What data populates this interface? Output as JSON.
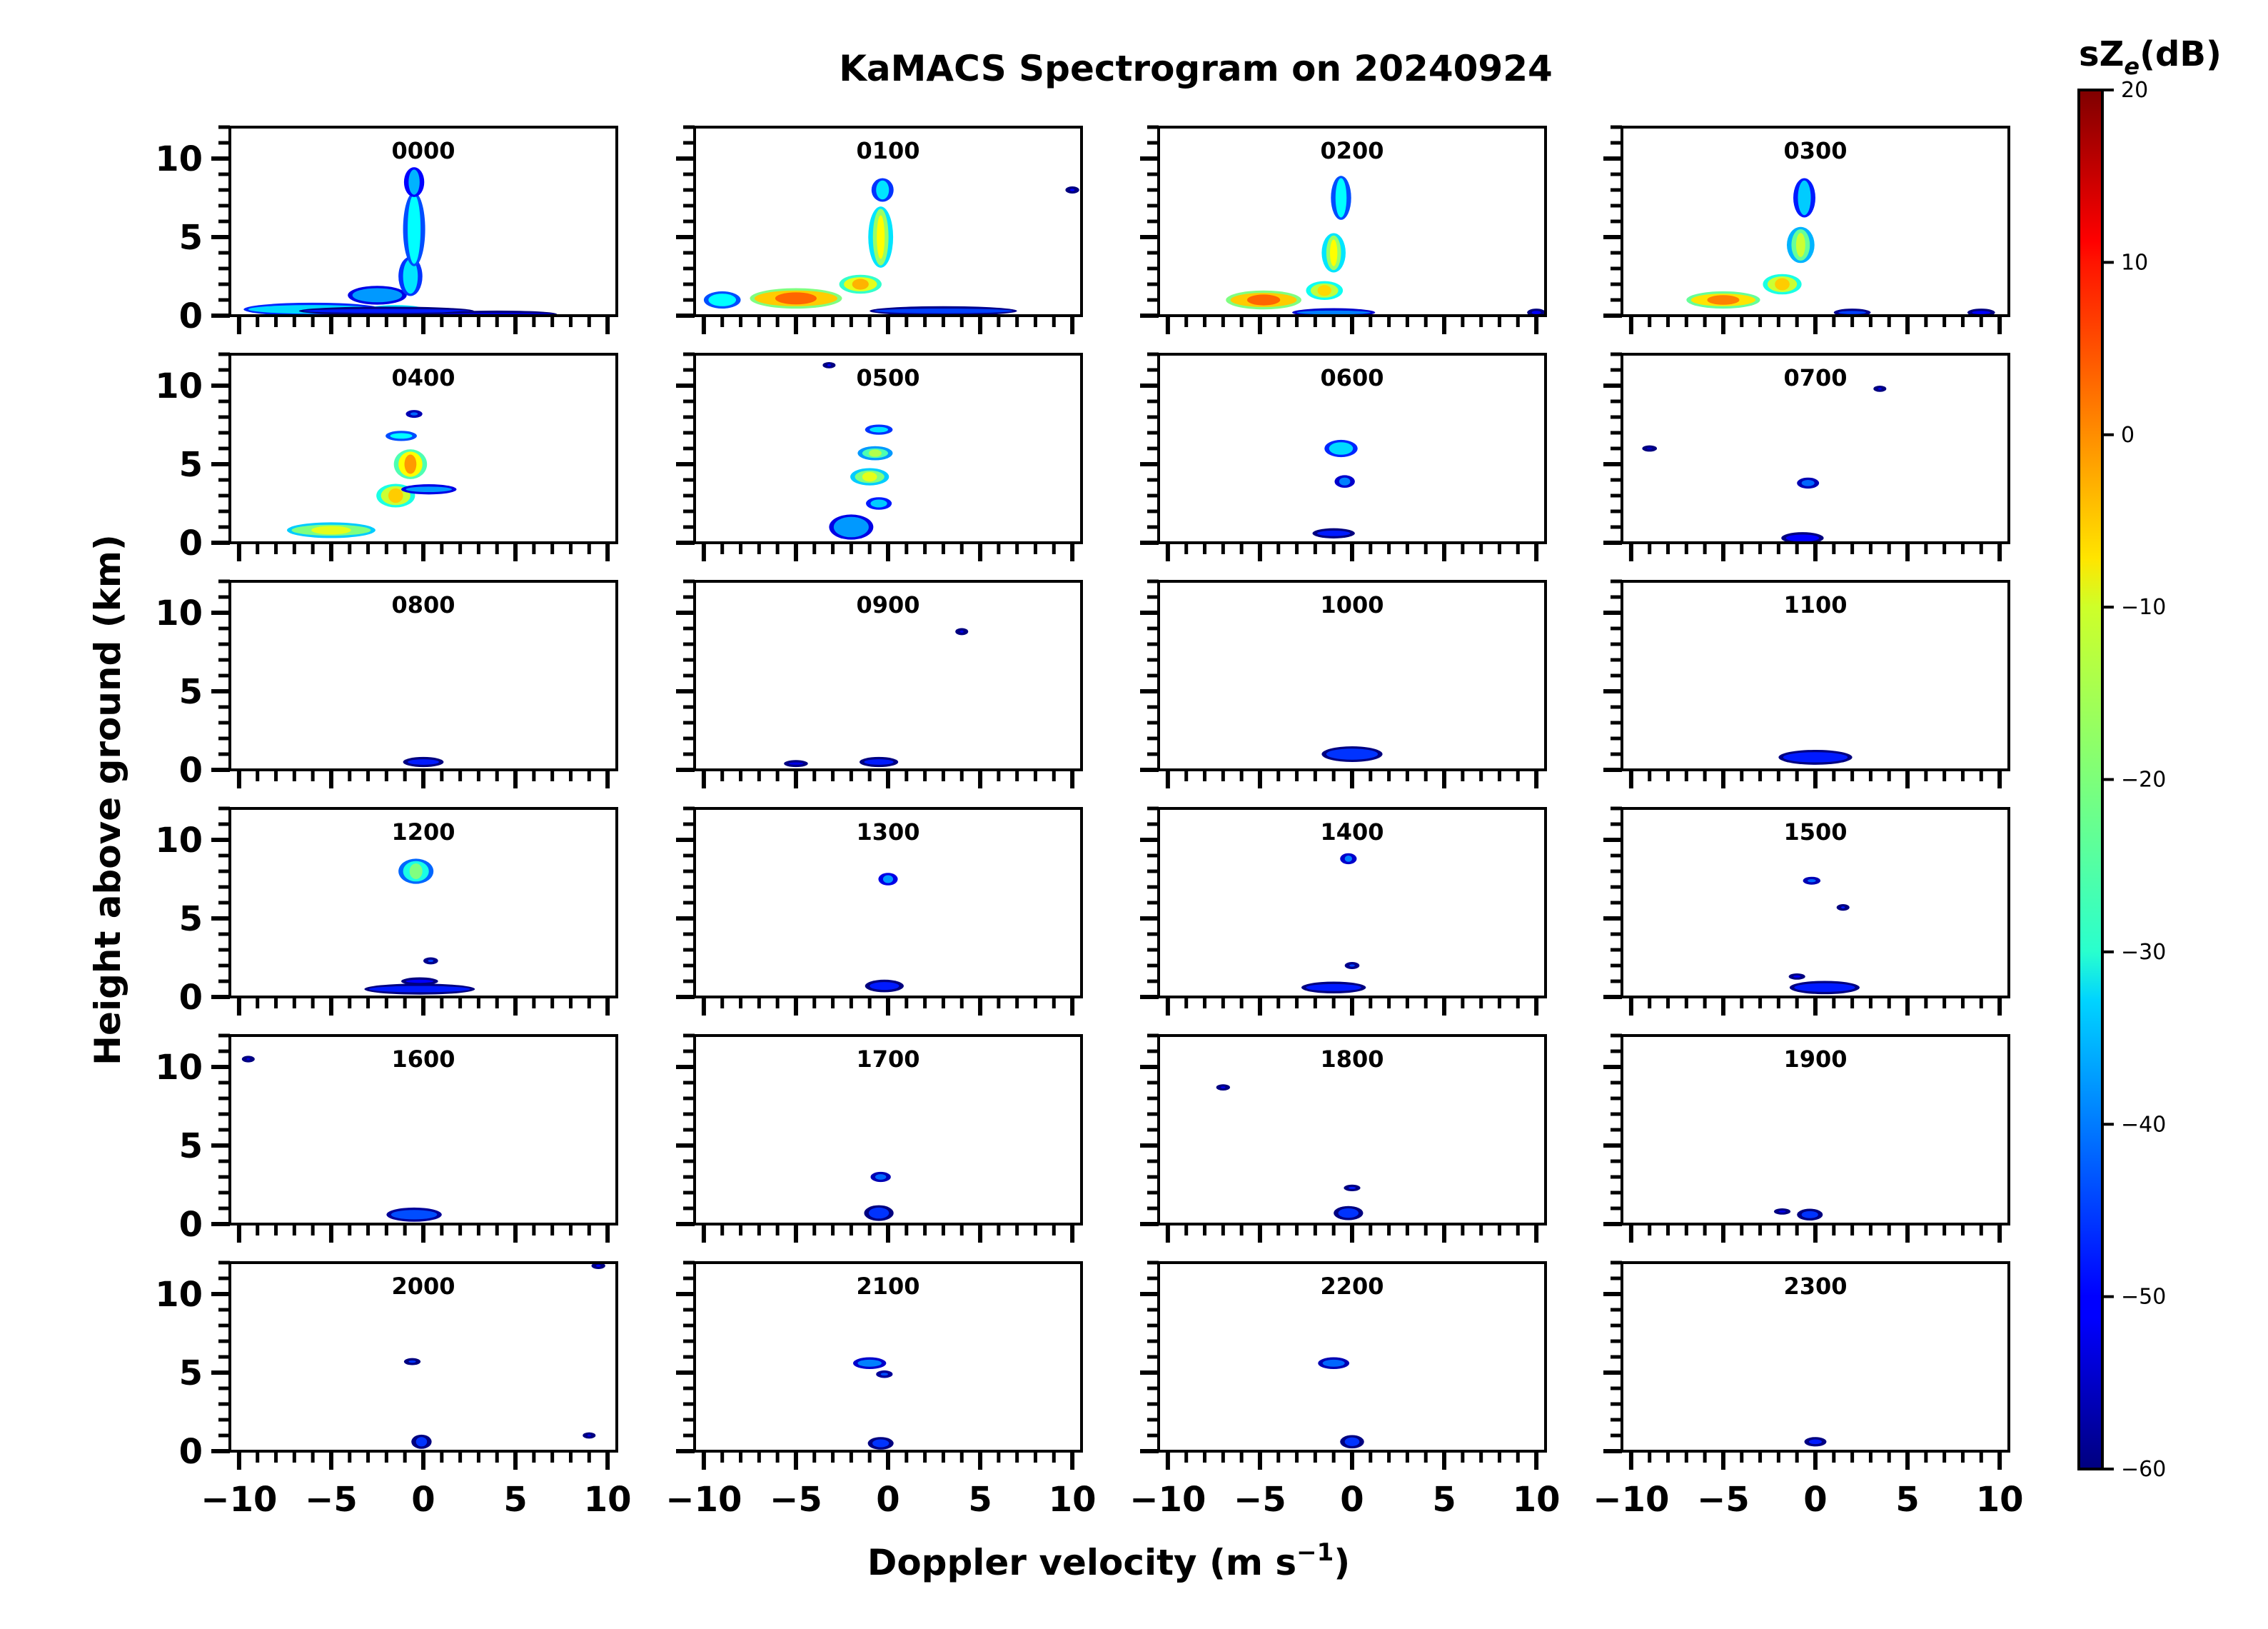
{
  "chart_data": {
    "type": "heatmap",
    "title": "KaMACS Spectrogram on 20240924",
    "xlabel_main": "Doppler velocity (m s",
    "xlabel_sup": "−1",
    "xlabel_close": ")",
    "ylabel": "Height above ground (km)",
    "xlim": [
      -10.5,
      10.5
    ],
    "ylim": [
      0,
      12
    ],
    "xticks": [
      -10,
      -5,
      0,
      5,
      10
    ],
    "xtick_labels": [
      "−10",
      "−5",
      "0",
      "5",
      "10"
    ],
    "yticks": [
      0,
      5,
      10
    ],
    "ytick_labels": [
      "0",
      "5",
      "10"
    ],
    "colorbar": {
      "label_main": "sZ",
      "label_sub": "e",
      "label_tail": "(dB)",
      "range": [
        -60,
        20
      ],
      "ticks": [
        20,
        10,
        0,
        -10,
        -20,
        -30,
        -40,
        -50,
        -60
      ],
      "tick_labels": [
        "20",
        "10",
        "0",
        "−10",
        "−20",
        "−30",
        "−40",
        "−50",
        "−60"
      ],
      "colormap": "jet"
    },
    "panels": [
      {
        "label": "0000",
        "blobs": [
          [
            -6,
            0.4,
            7,
            0.55,
            -33
          ],
          [
            -2.5,
            1.3,
            2.7,
            0.9,
            -38
          ],
          [
            -0.7,
            2.5,
            0.8,
            2.2,
            -32
          ],
          [
            -0.5,
            5.5,
            0.7,
            4.4,
            -30
          ],
          [
            -0.5,
            8.5,
            0.6,
            1.6,
            -36
          ],
          [
            -1.5,
            0.3,
            3,
            0.45,
            -18
          ],
          [
            -2,
            0.3,
            9,
            0.25,
            -48
          ],
          [
            4,
            0.1,
            6,
            0.15,
            -52
          ]
        ]
      },
      {
        "label": "0100",
        "blobs": [
          [
            -5,
            1.1,
            4.5,
            1.0,
            -6
          ],
          [
            -1.5,
            2.0,
            1.8,
            0.9,
            -12
          ],
          [
            -0.4,
            5,
            0.85,
            3.6,
            -18
          ],
          [
            -0.3,
            8,
            0.7,
            1.2,
            -32
          ],
          [
            -9,
            1.0,
            1.5,
            0.8,
            -30
          ],
          [
            3,
            0.3,
            7.5,
            0.3,
            -45
          ],
          [
            10,
            8,
            0.25,
            0.15,
            -50
          ]
        ]
      },
      {
        "label": "0200",
        "blobs": [
          [
            -4.8,
            1.0,
            3.6,
            0.9,
            -6
          ],
          [
            -1.5,
            1.6,
            1.5,
            0.9,
            -15
          ],
          [
            -1.0,
            4.0,
            0.8,
            2.2,
            -18
          ],
          [
            -0.6,
            7.5,
            0.6,
            2.5,
            -30
          ],
          [
            -1,
            0.2,
            4,
            0.25,
            -40
          ],
          [
            10,
            0.2,
            0.5,
            0.2,
            -50
          ]
        ]
      },
      {
        "label": "0300",
        "blobs": [
          [
            -5,
            1.0,
            3.5,
            0.8,
            -8
          ],
          [
            -1.8,
            2.0,
            1.6,
            1.0,
            -14
          ],
          [
            -0.8,
            4.5,
            1.0,
            2.0,
            -22
          ],
          [
            -0.6,
            7.5,
            0.7,
            2.2,
            -34
          ],
          [
            2,
            0.2,
            1.5,
            0.2,
            -45
          ],
          [
            9,
            0.2,
            1,
            0.2,
            -50
          ]
        ]
      },
      {
        "label": "0400",
        "blobs": [
          [
            -5,
            0.8,
            4.3,
            0.7,
            -20
          ],
          [
            -1.5,
            3.0,
            1.6,
            1.2,
            -14
          ],
          [
            -0.7,
            5.0,
            1.3,
            1.6,
            -10
          ],
          [
            0.3,
            3.4,
            2.5,
            0.35,
            -38
          ],
          [
            -0.5,
            8.2,
            0.4,
            0.2,
            -42
          ],
          [
            -1.2,
            6.8,
            1.2,
            0.35,
            -30
          ]
        ]
      },
      {
        "label": "0500",
        "blobs": [
          [
            -2.0,
            1.0,
            1.9,
            1.3,
            -38
          ],
          [
            -0.5,
            2.5,
            0.9,
            0.5,
            -34
          ],
          [
            -1.0,
            4.2,
            1.6,
            0.8,
            -20
          ],
          [
            -0.7,
            5.7,
            1.4,
            0.6,
            -24
          ],
          [
            -0.5,
            7.2,
            1.0,
            0.35,
            -32
          ],
          [
            -3.2,
            11.3,
            0.2,
            0.1,
            -50
          ]
        ]
      },
      {
        "label": "0600",
        "blobs": [
          [
            -0.6,
            6.0,
            1.3,
            0.8,
            -33
          ],
          [
            -0.4,
            3.9,
            0.6,
            0.5,
            -40
          ],
          [
            -1,
            0.6,
            1.8,
            0.35,
            -48
          ]
        ]
      },
      {
        "label": "0700",
        "blobs": [
          [
            -0.4,
            3.8,
            0.7,
            0.4,
            -42
          ],
          [
            -0.7,
            0.3,
            1.8,
            0.45,
            -50
          ],
          [
            3.5,
            9.8,
            0.2,
            0.1,
            -52
          ],
          [
            -9,
            6,
            0.3,
            0.1,
            -55
          ]
        ]
      },
      {
        "label": "0800",
        "blobs": [
          [
            0,
            0.5,
            1.7,
            0.35,
            -48
          ]
        ]
      },
      {
        "label": "0900",
        "blobs": [
          [
            -0.5,
            0.5,
            1.6,
            0.35,
            -48
          ],
          [
            -5,
            0.4,
            0.8,
            0.15,
            -52
          ],
          [
            4,
            8.8,
            0.2,
            0.15,
            -52
          ]
        ]
      },
      {
        "label": "1000",
        "blobs": [
          [
            0,
            1.0,
            2.8,
            0.7,
            -46
          ]
        ]
      },
      {
        "label": "1100",
        "blobs": [
          [
            0,
            0.8,
            3.5,
            0.65,
            -48
          ]
        ]
      },
      {
        "label": "1200",
        "blobs": [
          [
            -0.4,
            8.0,
            1.4,
            1.3,
            -28
          ],
          [
            -0.2,
            0.5,
            5.5,
            0.4,
            -48
          ],
          [
            0.4,
            2.3,
            0.3,
            0.15,
            -45
          ],
          [
            -0.2,
            1.0,
            1.5,
            0.2,
            -50
          ]
        ]
      },
      {
        "label": "1300",
        "blobs": [
          [
            0,
            7.5,
            0.55,
            0.5,
            -38
          ],
          [
            -0.2,
            0.7,
            1.6,
            0.5,
            -48
          ]
        ]
      },
      {
        "label": "1400",
        "blobs": [
          [
            -0.2,
            8.8,
            0.4,
            0.4,
            -40
          ],
          [
            -1,
            0.6,
            3,
            0.45,
            -48
          ],
          [
            0,
            2.0,
            0.3,
            0.15,
            -45
          ]
        ]
      },
      {
        "label": "1500",
        "blobs": [
          [
            -0.2,
            7.4,
            0.45,
            0.2,
            -42
          ],
          [
            1.5,
            5.7,
            0.2,
            0.12,
            -48
          ],
          [
            0.5,
            0.6,
            3.3,
            0.55,
            -48
          ],
          [
            -1,
            1.3,
            0.4,
            0.1,
            -50
          ]
        ]
      },
      {
        "label": "1600",
        "blobs": [
          [
            -0.5,
            0.6,
            2.5,
            0.6,
            -44
          ],
          [
            -9.5,
            10.5,
            0.2,
            0.12,
            -52
          ]
        ]
      },
      {
        "label": "1700",
        "blobs": [
          [
            -0.4,
            3.0,
            0.6,
            0.35,
            -42
          ],
          [
            -0.5,
            0.7,
            1.1,
            0.7,
            -46
          ]
        ]
      },
      {
        "label": "1800",
        "blobs": [
          [
            -0.2,
            0.7,
            1.1,
            0.6,
            -46
          ],
          [
            0,
            2.3,
            0.4,
            0.12,
            -48
          ],
          [
            -7,
            8.7,
            0.25,
            0.1,
            -52
          ]
        ]
      },
      {
        "label": "1900",
        "blobs": [
          [
            -0.3,
            0.6,
            0.9,
            0.45,
            -46
          ],
          [
            -1.8,
            0.8,
            0.4,
            0.1,
            -52
          ]
        ]
      },
      {
        "label": "2000",
        "blobs": [
          [
            -0.1,
            0.6,
            0.6,
            0.6,
            -46
          ],
          [
            -0.6,
            5.7,
            0.4,
            0.15,
            -46
          ],
          [
            9.5,
            11.8,
            0.25,
            0.12,
            -50
          ],
          [
            9,
            1.0,
            0.2,
            0.1,
            -52
          ]
        ]
      },
      {
        "label": "2100",
        "blobs": [
          [
            -1.0,
            5.6,
            1.3,
            0.45,
            -40
          ],
          [
            -0.2,
            4.9,
            0.4,
            0.18,
            -44
          ],
          [
            -0.4,
            0.5,
            0.9,
            0.5,
            -46
          ]
        ]
      },
      {
        "label": "2200",
        "blobs": [
          [
            -1.0,
            5.6,
            1.2,
            0.45,
            -42
          ],
          [
            0,
            0.6,
            0.8,
            0.55,
            -46
          ]
        ]
      },
      {
        "label": "2300",
        "blobs": [
          [
            0,
            0.6,
            0.7,
            0.3,
            -48
          ]
        ]
      }
    ]
  }
}
